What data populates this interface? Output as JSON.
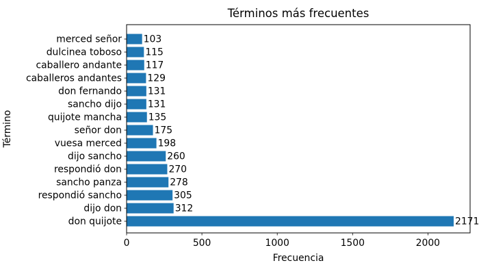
{
  "chart_data": {
    "type": "bar",
    "orientation": "horizontal",
    "title": "Términos más frecuentes",
    "xlabel": "Frecuencia",
    "ylabel": "Término",
    "categories_order": "top-to-bottom",
    "categories": [
      "merced señor",
      "dulcinea toboso",
      "caballero andante",
      "caballeros andantes",
      "don fernando",
      "sancho dijo",
      "quijote mancha",
      "señor don",
      "vuesa merced",
      "dijo sancho",
      "respondió don",
      "sancho panza",
      "respondió sancho",
      "dijo don",
      "don quijote"
    ],
    "values": [
      103,
      115,
      117,
      129,
      131,
      131,
      135,
      175,
      198,
      260,
      270,
      278,
      305,
      312,
      2171
    ],
    "bar_color": "#1f77b4",
    "text_color": "#000000",
    "background_color": "#ffffff",
    "xlim": [
      0,
      2280
    ],
    "xticks": [
      0,
      500,
      1000,
      1500,
      2000
    ],
    "grid": false,
    "value_labels_shown": true
  }
}
